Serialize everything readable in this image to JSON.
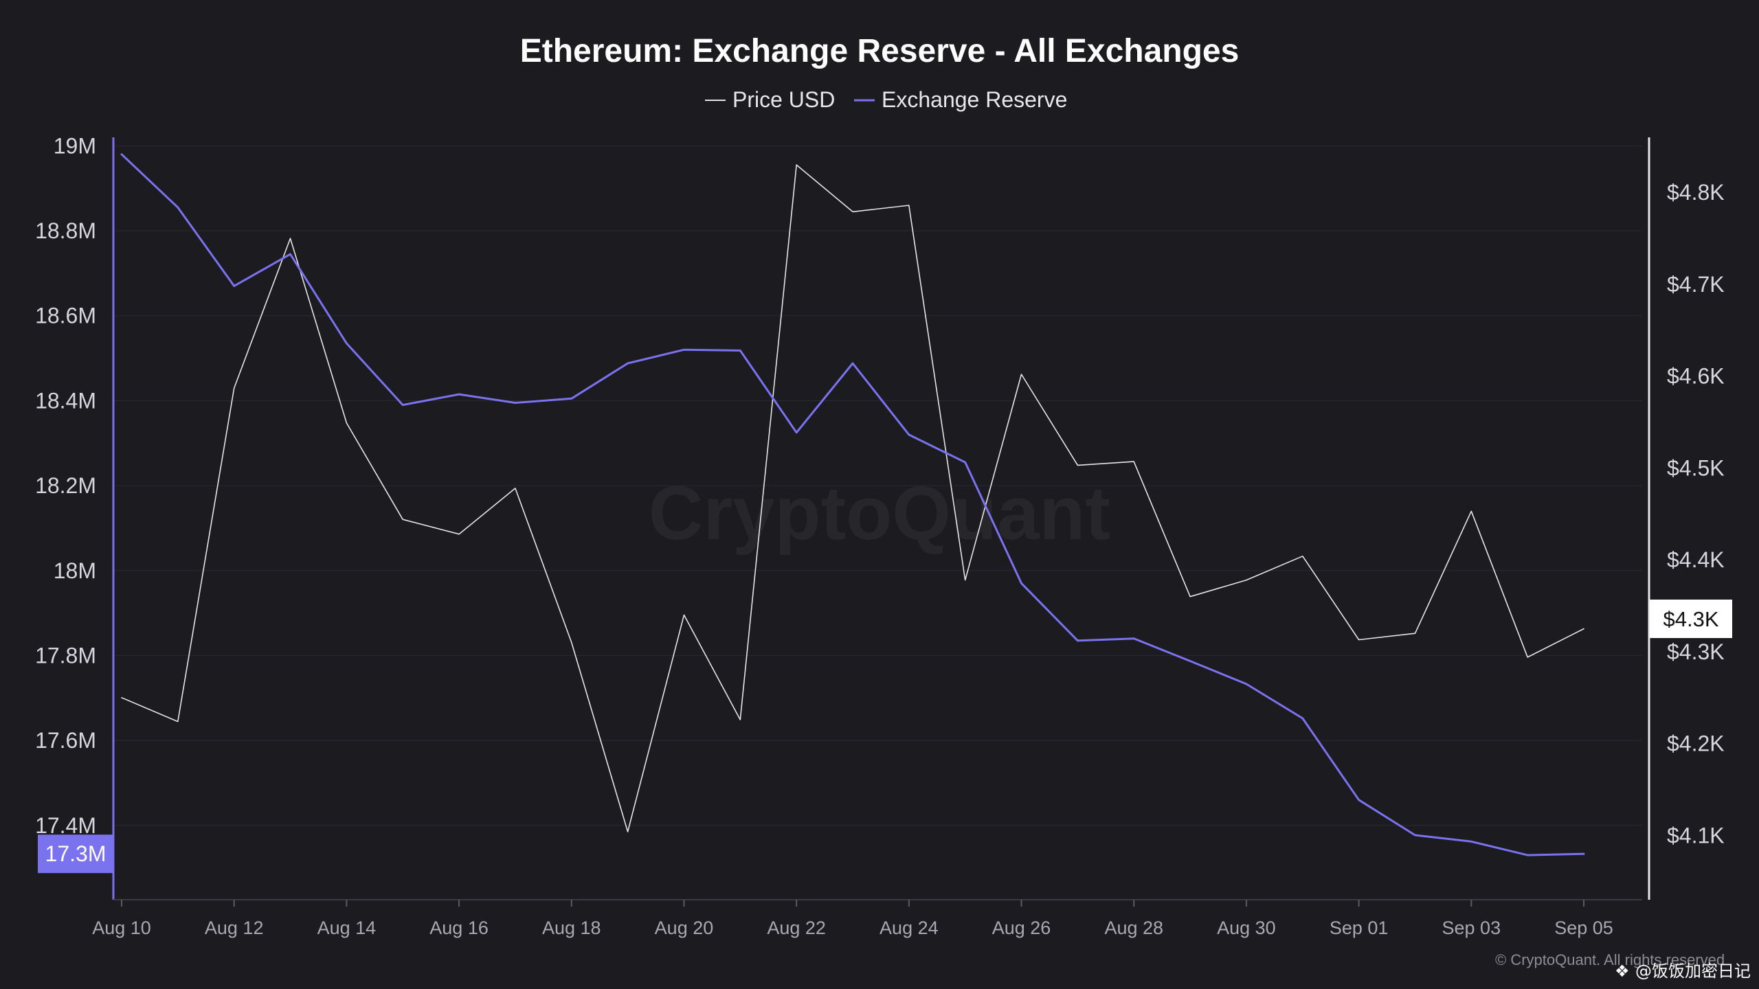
{
  "chart_data": {
    "type": "line",
    "title": "Ethereum: Exchange Reserve - All Exchanges",
    "legend_placement": "top-center",
    "grid": true,
    "x": [
      "2025-08-10",
      "2025-08-11",
      "2025-08-12",
      "2025-08-13",
      "2025-08-14",
      "2025-08-15",
      "2025-08-16",
      "2025-08-17",
      "2025-08-18",
      "2025-08-19",
      "2025-08-20",
      "2025-08-21",
      "2025-08-22",
      "2025-08-23",
      "2025-08-24",
      "2025-08-25",
      "2025-08-26",
      "2025-08-27",
      "2025-08-28",
      "2025-08-29",
      "2025-08-30",
      "2025-08-31",
      "2025-09-01",
      "2025-09-02",
      "2025-09-03",
      "2025-09-04",
      "2025-09-05"
    ],
    "x_tick_labels": [
      "Aug 10",
      "Aug 12",
      "Aug 14",
      "Aug 16",
      "Aug 18",
      "Aug 20",
      "Aug 22",
      "Aug 24",
      "Aug 26",
      "Aug 28",
      "Aug 30",
      "Sep 01",
      "Sep 03",
      "Sep 05"
    ],
    "series": [
      {
        "name": "Price USD",
        "axis": "right",
        "color": "#e6e6e6",
        "values": [
          4250,
          4224,
          4587,
          4750,
          4549,
          4444,
          4428,
          4478,
          4310,
          4104,
          4340,
          4226,
          4830,
          4779,
          4786,
          4378,
          4602,
          4503,
          4507,
          4360,
          4378,
          4404,
          4313,
          4320,
          4453,
          4294,
          4325
        ]
      },
      {
        "name": "Exchange Reserve",
        "axis": "left",
        "color": "#7b72f0",
        "values": [
          18980000,
          18855000,
          18670000,
          18745000,
          18535000,
          18390000,
          18415000,
          18395000,
          18405000,
          18488000,
          18520000,
          18518000,
          18325000,
          18488000,
          18320000,
          18255000,
          17970000,
          17835000,
          17840000,
          17787000,
          17733000,
          17652000,
          17460000,
          17377000,
          17362000,
          17330000,
          17333000
        ]
      }
    ],
    "y_left": {
      "ticks": [
        19000000,
        18800000,
        18600000,
        18400000,
        18200000,
        18000000,
        17800000,
        17600000,
        17400000
      ],
      "tick_labels": [
        "19M",
        "18.8M",
        "18.6M",
        "18.4M",
        "18.2M",
        "18M",
        "17.8M",
        "17.6M",
        "17.4M"
      ],
      "range": [
        17225000,
        19020000
      ],
      "current_label": "17.3M"
    },
    "y_right": {
      "ticks": [
        4800,
        4700,
        4600,
        4500,
        4400,
        4300,
        4200,
        4100
      ],
      "tick_labels": [
        "$4.8K",
        "$4.7K",
        "$4.6K",
        "$4.5K",
        "$4.4K",
        "$4.3K",
        "$4.2K",
        "$4.1K"
      ],
      "range": [
        4030,
        4860
      ],
      "current_label": "$4.3K"
    },
    "watermark": "CryptoQuant",
    "copyright": "© CryptoQuant. All rights reserved",
    "corner_tag": "@饭饭加密日记"
  }
}
